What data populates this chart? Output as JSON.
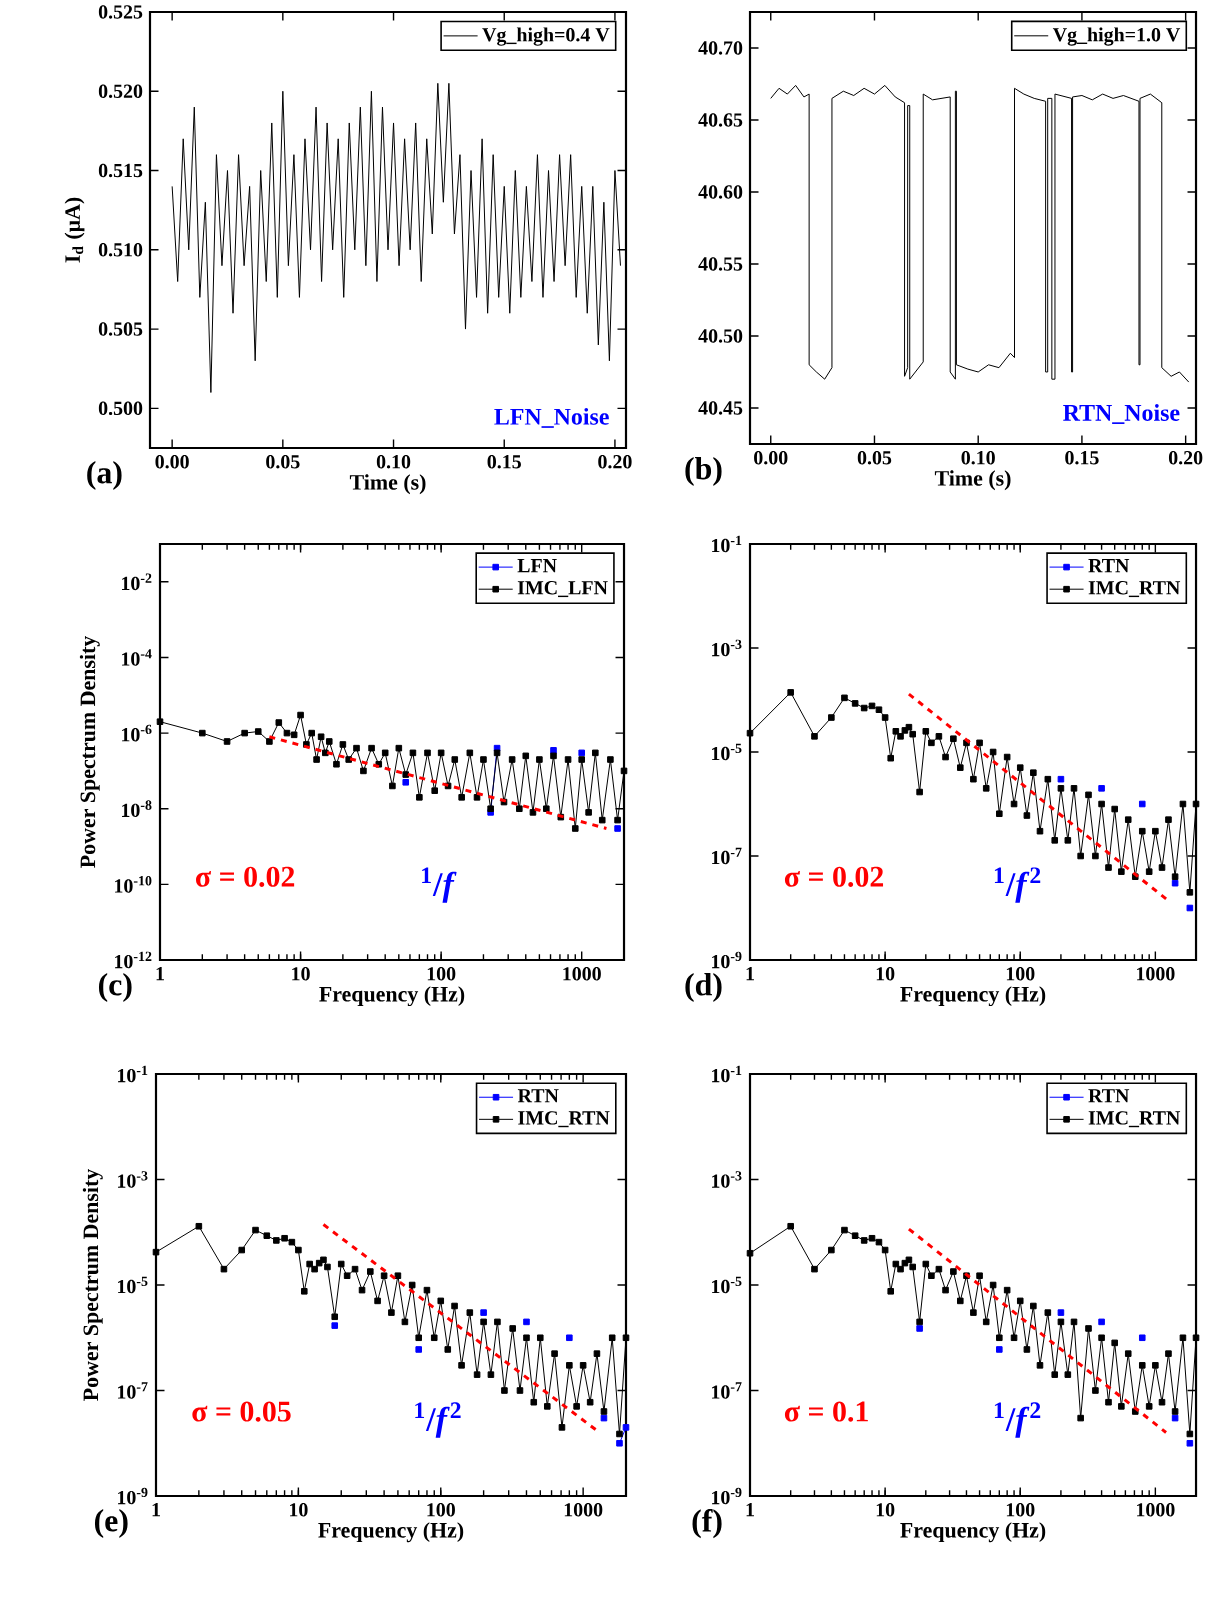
{
  "chart_data": [
    {
      "type": "line",
      "xlabel": "Time (s)",
      "ylabel": "I$_{d}$ (μA)",
      "legend": "top right",
      "xlim": [
        -0.01,
        0.205
      ],
      "xticks": [
        {
          "value": 0,
          "label": "0.00"
        },
        0.05,
        {
          "value": 0.1,
          "label": "0.10"
        },
        0.15,
        {
          "value": 0.2,
          "label": "0.20"
        }
      ],
      "ylim": [
        0.4975,
        0.525
      ],
      "yticks": [
        {
          "value": 0.5,
          "label": "0.500"
        },
        0.505,
        {
          "value": 0.51,
          "label": "0.510"
        },
        0.515,
        {
          "value": 0.52,
          "label": "0.520"
        },
        0.525
      ],
      "annotations": [
        "(a)",
        "LFN_Noise"
      ],
      "x": [
        0,
        0.0025,
        0.005,
        0.0075,
        0.01,
        0.0125,
        0.015,
        0.0175,
        0.02,
        0.0225,
        0.025,
        0.0275,
        0.03,
        0.0325,
        0.035,
        0.0375,
        0.04,
        0.0425,
        0.045,
        0.0475,
        0.05,
        0.0525,
        0.055,
        0.0575,
        0.06,
        0.0625,
        0.065,
        0.0675,
        0.07,
        0.0725,
        0.075,
        0.0775,
        0.08,
        0.0825,
        0.085,
        0.0875,
        0.09,
        0.0925,
        0.095,
        0.0975,
        0.1,
        0.1025,
        0.105,
        0.1075,
        0.11,
        0.1125,
        0.115,
        0.1175,
        0.12,
        0.1225,
        0.125,
        0.1275,
        0.13,
        0.1325,
        0.135,
        0.1375,
        0.14,
        0.1425,
        0.145,
        0.1475,
        0.15,
        0.1525,
        0.155,
        0.1575,
        0.16,
        0.1625,
        0.165,
        0.1675,
        0.17,
        0.1725,
        0.175,
        0.1775,
        0.18,
        0.1825,
        0.185,
        0.1875,
        0.19,
        0.1925,
        0.195,
        0.1975,
        0.2,
        0.2025
      ],
      "series": [
        {
          "name": "Vg_high=0.4 V",
          "color": "#000000",
          "marker": "none",
          "values": [
            0.514,
            0.508,
            0.517,
            0.51,
            0.519,
            0.507,
            0.513,
            0.501,
            0.516,
            0.509,
            0.515,
            0.506,
            0.516,
            0.509,
            0.514,
            0.503,
            0.515,
            0.508,
            0.518,
            0.507,
            0.52,
            0.509,
            0.516,
            0.507,
            0.517,
            0.51,
            0.519,
            0.508,
            0.518,
            0.51,
            0.517,
            0.507,
            0.518,
            0.51,
            0.519,
            0.509,
            0.52,
            0.508,
            0.519,
            0.51,
            0.518,
            0.509,
            0.517,
            0.51,
            0.518,
            0.508,
            0.517,
            0.511,
            0.5205,
            0.513,
            0.5205,
            0.511,
            0.516,
            0.505,
            0.515,
            0.507,
            0.517,
            0.506,
            0.516,
            0.507,
            0.514,
            0.506,
            0.515,
            0.507,
            0.514,
            0.508,
            0.516,
            0.507,
            0.515,
            0.508,
            0.516,
            0.509,
            0.516,
            0.507,
            0.514,
            0.506,
            0.514,
            0.504,
            0.513,
            0.503,
            0.515,
            0.509
          ]
        }
      ]
    },
    {
      "type": "line",
      "xlabel": "Time (s)",
      "legend": "top right",
      "xlim": [
        -0.01,
        0.205
      ],
      "xticks": [
        {
          "value": 0,
          "label": "0.00"
        },
        0.05,
        {
          "value": 0.1,
          "label": "0.10"
        },
        0.15,
        {
          "value": 0.2,
          "label": "0.20"
        }
      ],
      "ylim": [
        40.425,
        40.725
      ],
      "yticks": [
        40.45,
        {
          "value": 40.5,
          "label": "40.50"
        },
        40.55,
        {
          "value": 40.6,
          "label": "40.60"
        },
        40.65,
        {
          "value": 40.7,
          "label": "40.70"
        }
      ],
      "annotations": [
        "(b)",
        "RTN_Noise"
      ],
      "x": [
        0,
        0.004,
        0.008,
        0.012,
        0.016,
        0.0185,
        0.0185,
        0.022,
        0.026,
        0.0295,
        0.0295,
        0.035,
        0.04,
        0.045,
        0.05,
        0.055,
        0.06,
        0.0645,
        0.0645,
        0.066,
        0.066,
        0.067,
        0.067,
        0.0735,
        0.0735,
        0.078,
        0.0865,
        0.0865,
        0.089,
        0.089,
        0.0895,
        0.0895,
        0.095,
        0.1,
        0.105,
        0.11,
        0.1155,
        0.1175,
        0.1175,
        0.122,
        0.127,
        0.1325,
        0.1325,
        0.1335,
        0.1335,
        0.1355,
        0.1355,
        0.137,
        0.137,
        0.145,
        0.145,
        0.1455,
        0.1455,
        0.15,
        0.155,
        0.16,
        0.165,
        0.17,
        0.1775,
        0.1775,
        0.178,
        0.178,
        0.183,
        0.1885,
        0.1885,
        0.193,
        0.197,
        0.2015
      ],
      "series": [
        {
          "name": "Vg_high=1.0 V",
          "color": "#000000",
          "marker": "none",
          "values": [
            40.665,
            40.672,
            40.668,
            40.674,
            40.666,
            40.668,
            40.48,
            40.475,
            40.47,
            40.478,
            40.665,
            40.67,
            40.667,
            40.672,
            40.668,
            40.674,
            40.666,
            40.662,
            40.472,
            40.478,
            40.66,
            40.66,
            40.47,
            40.482,
            40.668,
            40.664,
            40.666,
            40.475,
            40.47,
            40.67,
            40.67,
            40.48,
            40.477,
            40.475,
            40.48,
            40.478,
            40.488,
            40.485,
            40.672,
            40.668,
            40.665,
            40.663,
            40.475,
            40.475,
            40.665,
            40.665,
            40.47,
            40.47,
            40.668,
            40.665,
            40.475,
            40.475,
            40.666,
            40.667,
            40.664,
            40.668,
            40.665,
            40.667,
            40.663,
            40.48,
            40.48,
            40.665,
            40.668,
            40.662,
            40.478,
            40.472,
            40.475,
            40.468
          ]
        }
      ]
    },
    {
      "type": "line",
      "xlabel": "Frequency (Hz)",
      "ylabel": "Power Spectrum Density",
      "legend": "top right",
      "log": "xy",
      "xlim": [
        1,
        2000
      ],
      "xticks": [
        1,
        10,
        100,
        1000
      ],
      "ylim": [
        1e-12,
        0.1
      ],
      "yticks": [
        {
          "value": 1e-12,
          "label": "10$^{-12}$"
        },
        {
          "value": 1e-10,
          "label": "10$^{-10}$"
        },
        {
          "value": 1e-08,
          "label": "10$^{-8}$"
        },
        {
          "value": 1e-06,
          "label": "10$^{-6}$"
        },
        {
          "value": 0.0001,
          "label": "10$^{-4}$"
        },
        {
          "value": 0.01,
          "label": "10$^{-2}$"
        }
      ],
      "annotations": [
        "(c)",
        "σ = 0.02",
        "$^{1}$/*f*"
      ],
      "x": [
        1,
        2,
        3,
        4,
        5,
        6,
        7,
        8,
        9,
        10,
        11,
        12,
        13,
        14,
        15,
        16,
        18,
        20,
        22,
        25,
        28,
        32,
        36,
        40,
        45,
        50,
        56,
        63,
        70,
        80,
        90,
        100,
        112,
        125,
        140,
        160,
        180,
        200,
        225,
        250,
        280,
        320,
        360,
        400,
        450,
        500,
        560,
        630,
        710,
        800,
        900,
        1000,
        1120,
        1250,
        1400,
        1600,
        1800,
        2000
      ],
      "series": [
        {
          "name": "LFN",
          "color": "#0000ff",
          "marker": "square",
          "values": [
            null,
            null,
            null,
            null,
            null,
            null,
            null,
            null,
            null,
            null,
            null,
            null,
            null,
            null,
            null,
            null,
            null,
            null,
            null,
            null,
            null,
            null,
            null,
            null,
            null,
            null,
            5e-08,
            null,
            null,
            null,
            null,
            null,
            null,
            null,
            null,
            null,
            null,
            null,
            8e-09,
            4e-07,
            null,
            null,
            null,
            null,
            null,
            null,
            null,
            3.5e-07,
            null,
            null,
            null,
            3e-07,
            null,
            null,
            null,
            null,
            3e-09,
            null
          ]
        },
        {
          "name": "IMC_LFN",
          "color": "#000000",
          "marker": "square",
          "values": [
            2e-06,
            1e-06,
            6e-07,
            1e-06,
            1.1e-06,
            6e-07,
            1.9e-06,
            1e-06,
            9e-07,
            3e-06,
            5e-07,
            1e-06,
            2e-07,
            8e-07,
            3e-07,
            6e-07,
            1.5e-07,
            5e-07,
            2e-07,
            4e-07,
            1e-07,
            4e-07,
            1.5e-07,
            3e-07,
            4e-08,
            4e-07,
            8e-08,
            3e-07,
            2e-08,
            3e-07,
            3e-08,
            3e-07,
            4e-08,
            2e-07,
            2e-08,
            3e-07,
            2e-08,
            2e-07,
            1e-08,
            3e-07,
            1.5e-08,
            2e-07,
            1e-08,
            2.5e-07,
            8e-09,
            2e-07,
            1e-08,
            2.5e-07,
            6e-09,
            2e-07,
            3e-09,
            2e-07,
            8e-09,
            3e-07,
            5e-09,
            2e-07,
            5e-09,
            1e-07
          ]
        },
        {
          "color": "#ff0000",
          "marker": "none",
          "line_style": "dashed",
          "x": [
            6,
            1500
          ],
          "values": [
            8e-07,
            3e-09
          ]
        }
      ]
    },
    {
      "type": "line",
      "xlabel": "Frequency (Hz)",
      "legend": "top right",
      "log": "xy",
      "xlim": [
        1,
        2000
      ],
      "xticks": [
        1,
        10,
        100,
        1000
      ],
      "ylim": [
        1e-09,
        0.1
      ],
      "yticks": [
        {
          "value": 1e-09,
          "label": "10$^{-9}$"
        },
        {
          "value": 1e-07,
          "label": "10$^{-7}$"
        },
        {
          "value": 1e-05,
          "label": "10$^{-5}$"
        },
        {
          "value": 0.001,
          "label": "10$^{-3}$"
        },
        {
          "value": 0.1,
          "label": "10$^{-1}$"
        }
      ],
      "annotations": [
        "(d)",
        "σ = 0.02",
        "$^{1}$/*f*$^{2}$"
      ],
      "x": [
        1,
        2,
        3,
        4,
        5,
        6,
        7,
        8,
        9,
        10,
        11,
        12,
        13,
        14,
        15,
        16,
        18,
        20,
        22,
        25,
        28,
        32,
        36,
        40,
        45,
        50,
        56,
        63,
        70,
        80,
        90,
        100,
        112,
        125,
        140,
        160,
        180,
        200,
        225,
        250,
        280,
        320,
        360,
        400,
        450,
        500,
        560,
        630,
        710,
        800,
        900,
        1000,
        1120,
        1250,
        1400,
        1600,
        1800,
        2000
      ],
      "series": [
        {
          "name": "RTN",
          "color": "#0000ff",
          "marker": "square",
          "values": [
            null,
            null,
            null,
            null,
            null,
            null,
            null,
            null,
            null,
            null,
            null,
            null,
            null,
            null,
            null,
            null,
            null,
            null,
            null,
            null,
            null,
            null,
            null,
            null,
            null,
            null,
            null,
            null,
            null,
            null,
            null,
            null,
            null,
            null,
            null,
            null,
            null,
            3e-06,
            null,
            null,
            null,
            null,
            null,
            2e-06,
            null,
            null,
            null,
            null,
            null,
            1e-06,
            null,
            null,
            null,
            null,
            3e-08,
            null,
            1e-08,
            null
          ]
        },
        {
          "name": "IMC_RTN",
          "color": "#000000",
          "marker": "square",
          "values": [
            2.3e-05,
            0.00014,
            2e-05,
            4.6e-05,
            0.00011,
            8.6e-05,
            7e-05,
            7.7e-05,
            6.5e-05,
            4.6e-05,
            7.6e-06,
            2.5e-05,
            2e-05,
            2.6e-05,
            3e-05,
            2.2e-05,
            1.7e-06,
            2.5e-05,
            1.5e-05,
            2e-05,
            8e-06,
            1.8e-05,
            5e-06,
            1.5e-05,
            3e-06,
            1.5e-05,
            2e-06,
            1e-05,
            6.5e-07,
            8e-06,
            1e-06,
            5e-06,
            6e-07,
            4e-06,
            3e-07,
            3e-06,
            2e-07,
            2e-06,
            2e-07,
            2e-06,
            1e-07,
            1.5e-06,
            1e-07,
            1e-06,
            6e-08,
            8e-07,
            5e-08,
            5e-07,
            4e-08,
            3e-07,
            5e-08,
            3e-07,
            6e-08,
            5e-07,
            4e-08,
            1e-06,
            2e-08,
            1e-06
          ]
        },
        {
          "color": "#ff0000",
          "marker": "none",
          "line_style": "dashed",
          "x": [
            15,
            1240
          ],
          "values": [
            0.00013,
            1.4e-08
          ]
        }
      ]
    },
    {
      "type": "line",
      "xlabel": "Frequency (Hz)",
      "ylabel": "Power Spectrum Density",
      "legend": "top right",
      "log": "xy",
      "xlim": [
        1,
        2000
      ],
      "xticks": [
        1,
        10,
        100,
        1000
      ],
      "ylim": [
        1e-09,
        0.1
      ],
      "yticks": [
        {
          "value": 1e-09,
          "label": "10$^{-9}$"
        },
        {
          "value": 1e-07,
          "label": "10$^{-7}$"
        },
        {
          "value": 1e-05,
          "label": "10$^{-5}$"
        },
        {
          "value": 0.001,
          "label": "10$^{-3}$"
        },
        {
          "value": 0.1,
          "label": "10$^{-1}$"
        }
      ],
      "annotations": [
        "(e)",
        "σ = 0.05",
        "$^{1}$/*f*$^{2}$"
      ],
      "x": [
        1,
        2,
        3,
        4,
        5,
        6,
        7,
        8,
        9,
        10,
        11,
        12,
        13,
        14,
        15,
        16,
        18,
        20,
        22,
        25,
        28,
        32,
        36,
        40,
        45,
        50,
        56,
        63,
        70,
        80,
        90,
        100,
        112,
        125,
        140,
        160,
        180,
        200,
        225,
        250,
        280,
        320,
        360,
        400,
        450,
        500,
        560,
        630,
        710,
        800,
        900,
        1000,
        1120,
        1250,
        1400,
        1600,
        1800,
        2000
      ],
      "series": [
        {
          "name": "RTN",
          "color": "#0000ff",
          "marker": "square",
          "values": [
            null,
            null,
            null,
            null,
            null,
            null,
            null,
            null,
            null,
            null,
            null,
            null,
            null,
            null,
            null,
            null,
            1.7e-06,
            null,
            null,
            null,
            null,
            null,
            null,
            null,
            null,
            null,
            null,
            null,
            6e-07,
            null,
            null,
            null,
            null,
            null,
            null,
            null,
            null,
            3e-06,
            null,
            null,
            null,
            null,
            null,
            2e-06,
            null,
            null,
            null,
            null,
            null,
            1e-06,
            null,
            null,
            null,
            null,
            3e-08,
            null,
            1e-08,
            2e-08
          ]
        },
        {
          "name": "IMC_RTN",
          "color": "#000000",
          "marker": "square",
          "values": [
            4.2e-05,
            0.00013,
            2e-05,
            4.6e-05,
            0.00011,
            8.6e-05,
            7e-05,
            7.7e-05,
            6.5e-05,
            4.6e-05,
            7.6e-06,
            2.5e-05,
            2e-05,
            2.6e-05,
            3e-05,
            2.2e-05,
            2.5e-06,
            2.5e-05,
            1.5e-05,
            2e-05,
            8e-06,
            1.8e-05,
            5e-06,
            1.5e-05,
            3e-06,
            1.5e-05,
            2e-06,
            1e-05,
            1e-06,
            8e-06,
            1e-06,
            5e-06,
            6e-07,
            4e-06,
            3e-07,
            3e-06,
            2e-07,
            2e-06,
            2e-07,
            2e-06,
            1e-07,
            1.5e-06,
            1e-07,
            1e-06,
            6e-08,
            1e-06,
            5e-08,
            5e-07,
            2e-08,
            3e-07,
            5e-08,
            3e-07,
            6e-08,
            5e-07,
            4e-08,
            1e-06,
            1.5e-08,
            1e-06
          ]
        },
        {
          "color": "#ff0000",
          "marker": "none",
          "line_style": "dashed",
          "x": [
            15,
            1230
          ],
          "values": [
            0.00014,
            1.8e-08
          ]
        }
      ]
    },
    {
      "type": "line",
      "xlabel": "Frequency (Hz)",
      "legend": "top right",
      "log": "xy",
      "xlim": [
        1,
        2000
      ],
      "xticks": [
        1,
        10,
        100,
        1000
      ],
      "ylim": [
        1e-09,
        0.1
      ],
      "yticks": [
        {
          "value": 1e-09,
          "label": "10$^{-9}$"
        },
        {
          "value": 1e-07,
          "label": "10$^{-7}$"
        },
        {
          "value": 1e-05,
          "label": "10$^{-5}$"
        },
        {
          "value": 0.001,
          "label": "10$^{-3}$"
        },
        {
          "value": 0.1,
          "label": "10$^{-1}$"
        }
      ],
      "annotations": [
        "(f)",
        "σ = 0.1",
        "$^{1}$/*f*$^{2}$"
      ],
      "x": [
        1,
        2,
        3,
        4,
        5,
        6,
        7,
        8,
        9,
        10,
        11,
        12,
        13,
        14,
        15,
        16,
        18,
        20,
        22,
        25,
        28,
        32,
        36,
        40,
        45,
        50,
        56,
        63,
        70,
        80,
        90,
        100,
        112,
        125,
        140,
        160,
        180,
        200,
        225,
        250,
        280,
        320,
        360,
        400,
        450,
        500,
        560,
        630,
        710,
        800,
        900,
        1000,
        1120,
        1250,
        1400,
        1600,
        1800,
        2000
      ],
      "series": [
        {
          "name": "RTN",
          "color": "#0000ff",
          "marker": "square",
          "values": [
            null,
            null,
            null,
            null,
            null,
            null,
            null,
            null,
            null,
            null,
            null,
            null,
            null,
            null,
            null,
            null,
            1.5e-06,
            null,
            null,
            null,
            null,
            null,
            null,
            null,
            null,
            null,
            null,
            null,
            6e-07,
            null,
            null,
            null,
            null,
            null,
            null,
            null,
            null,
            3e-06,
            null,
            null,
            null,
            null,
            null,
            2e-06,
            null,
            null,
            null,
            null,
            null,
            1e-06,
            null,
            null,
            null,
            null,
            3e-08,
            null,
            1e-08,
            null
          ]
        },
        {
          "name": "IMC_RTN",
          "color": "#000000",
          "marker": "square",
          "values": [
            4e-05,
            0.00013,
            2e-05,
            4.6e-05,
            0.00011,
            8.6e-05,
            7e-05,
            7.7e-05,
            6.5e-05,
            4.6e-05,
            7.6e-06,
            2.5e-05,
            2e-05,
            2.6e-05,
            3e-05,
            2.2e-05,
            2e-06,
            2.5e-05,
            1.5e-05,
            2e-05,
            8e-06,
            1.8e-05,
            5e-06,
            1.5e-05,
            3e-06,
            1.5e-05,
            2e-06,
            1e-05,
            1e-06,
            8e-06,
            1e-06,
            5e-06,
            6e-07,
            4e-06,
            3e-07,
            3e-06,
            2e-07,
            2e-06,
            2e-07,
            2e-06,
            3e-08,
            1.5e-06,
            1e-07,
            1e-06,
            6e-08,
            8e-07,
            5e-08,
            5e-07,
            4e-08,
            3e-07,
            5e-08,
            3e-07,
            6e-08,
            5e-07,
            4e-08,
            1e-06,
            1.5e-08,
            1e-06
          ]
        },
        {
          "color": "#ff0000",
          "marker": "none",
          "line_style": "dashed",
          "x": [
            15,
            1200
          ],
          "values": [
            0.000115,
            1.6e-08
          ]
        }
      ]
    }
  ]
}
